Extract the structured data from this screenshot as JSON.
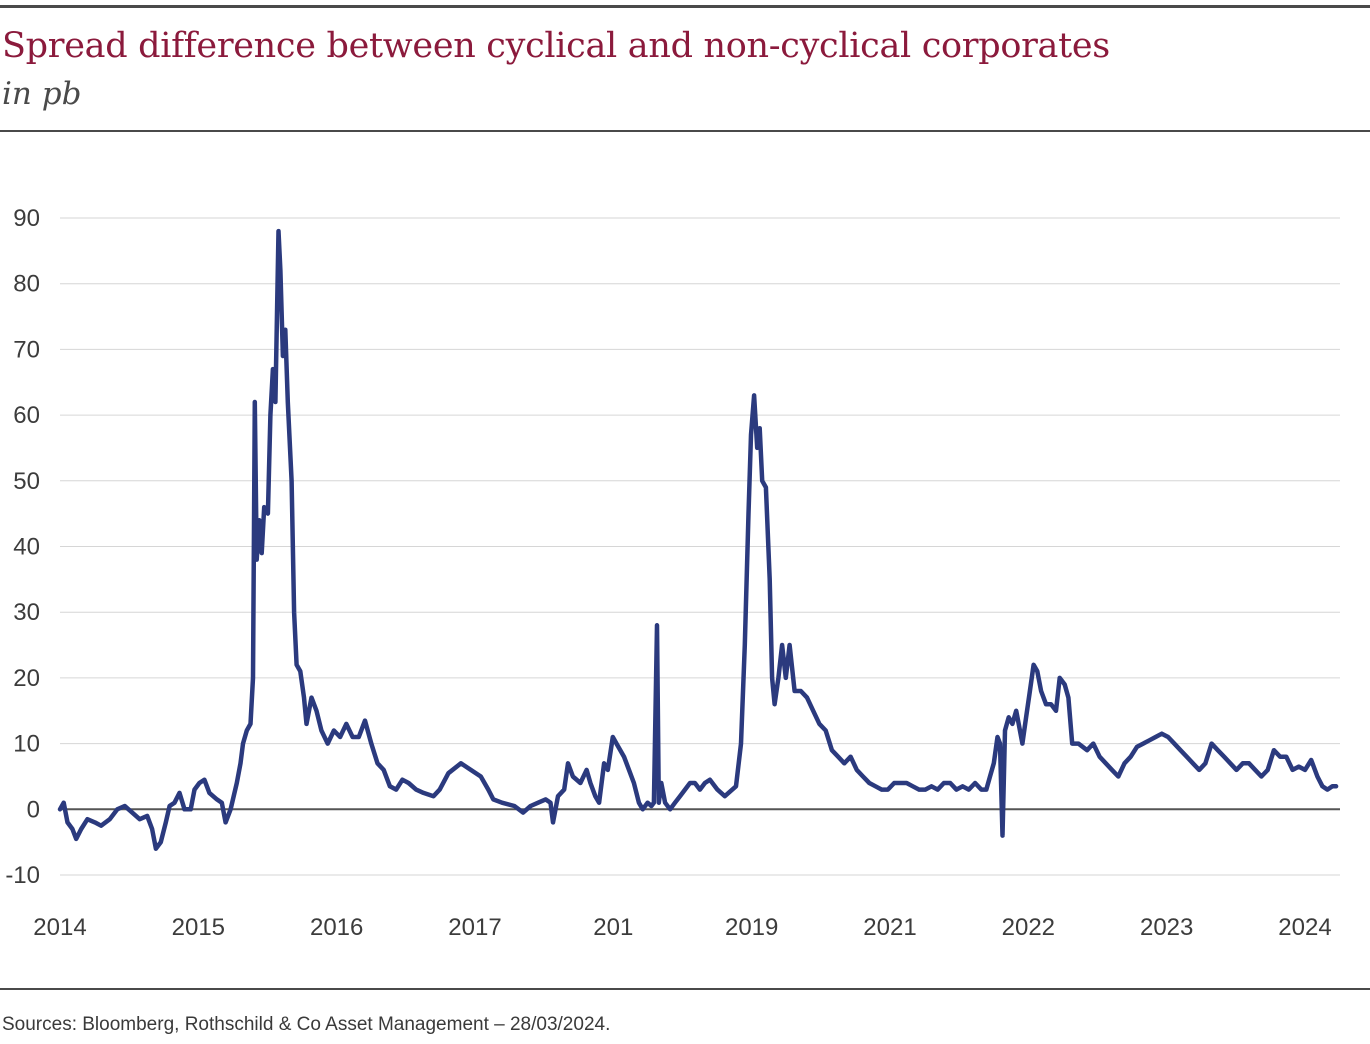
{
  "header": {
    "title": "Spread difference between cyclical and non-cyclical corporates",
    "subtitle": "in pb"
  },
  "footer": {
    "source": "Sources: Bloomberg, Rothschild & Co Asset Management – 28/03/2024."
  },
  "colors": {
    "line": "#2b3a7e",
    "title": "#8b1a3c",
    "grid": "#d6d6d6",
    "zero_line": "#555555"
  },
  "chart_data": {
    "type": "line",
    "title": "Spread difference between cyclical and non-cyclical corporates",
    "subtitle": "in pb",
    "xlabel": "",
    "ylabel": "",
    "ylim": [
      -10,
      90
    ],
    "xlim": [
      2014.0,
      2024.25
    ],
    "grid": true,
    "y_ticks": [
      "-10",
      "0",
      "10",
      "20",
      "30",
      "40",
      "50",
      "60",
      "70",
      "80",
      "90"
    ],
    "x_tick_labels": [
      "2014",
      "2015",
      "2016",
      "2017",
      "201",
      "2019",
      "2021",
      "2022",
      "2023",
      "2024"
    ],
    "series": [
      {
        "name": "",
        "points": [
          [
            2014.0,
            0
          ],
          [
            2014.03,
            1
          ],
          [
            2014.06,
            -2
          ],
          [
            2014.1,
            -3
          ],
          [
            2014.13,
            -4.5
          ],
          [
            2014.17,
            -3
          ],
          [
            2014.22,
            -1.5
          ],
          [
            2014.28,
            -2
          ],
          [
            2014.33,
            -2.5
          ],
          [
            2014.4,
            -1.5
          ],
          [
            2014.46,
            0
          ],
          [
            2014.52,
            0.5
          ],
          [
            2014.58,
            -0.5
          ],
          [
            2014.64,
            -1.5
          ],
          [
            2014.7,
            -1
          ],
          [
            2014.74,
            -3
          ],
          [
            2014.77,
            -6
          ],
          [
            2014.81,
            -5
          ],
          [
            2014.85,
            -2
          ],
          [
            2014.88,
            0.5
          ],
          [
            2014.92,
            1
          ],
          [
            2014.96,
            2.5
          ],
          [
            2015.0,
            0
          ],
          [
            2015.05,
            0
          ],
          [
            2015.08,
            3
          ],
          [
            2015.12,
            4
          ],
          [
            2015.16,
            4.5
          ],
          [
            2015.2,
            2.5
          ],
          [
            2015.26,
            1.5
          ],
          [
            2015.3,
            1
          ],
          [
            2015.33,
            -2
          ],
          [
            2015.37,
            0
          ],
          [
            2015.42,
            4
          ],
          [
            2015.45,
            7
          ],
          [
            2015.47,
            10
          ],
          [
            2015.5,
            12
          ],
          [
            2015.53,
            13
          ],
          [
            2015.55,
            20
          ],
          [
            2015.565,
            62
          ],
          [
            2015.58,
            38
          ],
          [
            2015.6,
            44
          ],
          [
            2015.62,
            39
          ],
          [
            2015.64,
            46
          ],
          [
            2015.67,
            45
          ],
          [
            2015.69,
            60
          ],
          [
            2015.71,
            67
          ],
          [
            2015.73,
            62
          ],
          [
            2015.755,
            88
          ],
          [
            2015.77,
            82
          ],
          [
            2015.79,
            69
          ],
          [
            2015.81,
            73
          ],
          [
            2015.83,
            62
          ],
          [
            2015.86,
            50
          ],
          [
            2015.88,
            30
          ],
          [
            2015.9,
            22
          ],
          [
            2015.93,
            21
          ],
          [
            2015.96,
            17
          ],
          [
            2015.98,
            13
          ],
          [
            2016.02,
            17
          ],
          [
            2016.06,
            15
          ],
          [
            2016.1,
            12
          ],
          [
            2016.15,
            10
          ],
          [
            2016.2,
            12
          ],
          [
            2016.25,
            11
          ],
          [
            2016.3,
            13
          ],
          [
            2016.35,
            11
          ],
          [
            2016.4,
            11
          ],
          [
            2016.45,
            13.5
          ],
          [
            2016.5,
            10
          ],
          [
            2016.55,
            7
          ],
          [
            2016.6,
            6
          ],
          [
            2016.65,
            3.5
          ],
          [
            2016.7,
            3
          ],
          [
            2016.75,
            4.5
          ],
          [
            2016.8,
            4
          ],
          [
            2016.86,
            3
          ],
          [
            2016.92,
            2.5
          ],
          [
            2017.0,
            2
          ],
          [
            2017.05,
            3
          ],
          [
            2017.12,
            5.5
          ],
          [
            2017.22,
            7
          ],
          [
            2017.3,
            6
          ],
          [
            2017.38,
            5
          ],
          [
            2017.44,
            3
          ],
          [
            2017.48,
            1.5
          ],
          [
            2017.55,
            1
          ],
          [
            2017.65,
            0.5
          ],
          [
            2017.72,
            -0.5
          ],
          [
            2017.78,
            0.5
          ],
          [
            2017.84,
            1
          ],
          [
            2017.9,
            1.5
          ],
          [
            2017.94,
            1
          ],
          [
            2017.96,
            -2
          ],
          [
            2018.0,
            2
          ],
          [
            2018.05,
            3
          ],
          [
            2018.08,
            7
          ],
          [
            2018.12,
            5
          ],
          [
            2018.18,
            4
          ],
          [
            2018.23,
            6
          ],
          [
            2018.26,
            4
          ],
          [
            2018.3,
            2
          ],
          [
            2018.33,
            1
          ],
          [
            2018.37,
            7
          ],
          [
            2018.4,
            6
          ],
          [
            2018.44,
            11
          ],
          [
            2018.47,
            10
          ],
          [
            2018.5,
            9
          ],
          [
            2018.53,
            8
          ],
          [
            2018.57,
            6
          ],
          [
            2018.61,
            4
          ],
          [
            2018.65,
            1
          ],
          [
            2018.68,
            0
          ],
          [
            2018.72,
            1
          ],
          [
            2018.75,
            0.5
          ],
          [
            2018.77,
            1
          ],
          [
            2018.795,
            28
          ],
          [
            2018.81,
            1
          ],
          [
            2018.83,
            4
          ],
          [
            2018.86,
            1
          ],
          [
            2018.9,
            0
          ],
          [
            2018.94,
            1
          ],
          [
            2018.98,
            2
          ],
          [
            2019.02,
            3
          ],
          [
            2019.06,
            4
          ],
          [
            2019.1,
            4
          ],
          [
            2019.14,
            3
          ],
          [
            2019.18,
            4
          ],
          [
            2019.22,
            4.5
          ],
          [
            2019.28,
            3
          ],
          [
            2019.34,
            2
          ],
          [
            2019.4,
            3
          ],
          [
            2019.43,
            3.5
          ],
          [
            2019.47,
            10
          ],
          [
            2019.5,
            25
          ],
          [
            2019.53,
            45
          ],
          [
            2019.55,
            57
          ],
          [
            2019.575,
            63
          ],
          [
            2019.6,
            55
          ],
          [
            2019.62,
            58
          ],
          [
            2019.64,
            50
          ],
          [
            2019.67,
            49
          ],
          [
            2019.7,
            35
          ],
          [
            2019.72,
            20
          ],
          [
            2019.74,
            16
          ],
          [
            2019.77,
            20
          ],
          [
            2019.8,
            25
          ],
          [
            2019.83,
            20
          ],
          [
            2019.86,
            25
          ],
          [
            2019.9,
            18
          ],
          [
            2019.95,
            18
          ],
          [
            2020.0,
            17
          ],
          [
            2020.05,
            15
          ],
          [
            2020.1,
            13
          ],
          [
            2020.15,
            12
          ],
          [
            2020.2,
            9
          ],
          [
            2020.25,
            8
          ],
          [
            2020.3,
            7
          ],
          [
            2020.35,
            8
          ],
          [
            2020.4,
            6
          ],
          [
            2020.45,
            5
          ],
          [
            2020.5,
            4
          ],
          [
            2020.55,
            3.5
          ],
          [
            2020.6,
            3
          ],
          [
            2020.65,
            3
          ],
          [
            2020.7,
            4
          ],
          [
            2020.75,
            4
          ],
          [
            2020.8,
            4
          ],
          [
            2020.85,
            3.5
          ],
          [
            2020.9,
            3
          ],
          [
            2020.95,
            3
          ],
          [
            2021.0,
            3.5
          ],
          [
            2021.05,
            3
          ],
          [
            2021.1,
            4
          ],
          [
            2021.15,
            4
          ],
          [
            2021.2,
            3
          ],
          [
            2021.25,
            3.5
          ],
          [
            2021.3,
            3
          ],
          [
            2021.35,
            4
          ],
          [
            2021.4,
            3
          ],
          [
            2021.44,
            3
          ],
          [
            2021.47,
            5
          ],
          [
            2021.5,
            7
          ],
          [
            2021.53,
            11
          ],
          [
            2021.55,
            10
          ],
          [
            2021.57,
            -4
          ],
          [
            2021.59,
            12
          ],
          [
            2021.62,
            14
          ],
          [
            2021.65,
            13
          ],
          [
            2021.68,
            15
          ],
          [
            2021.7,
            13
          ],
          [
            2021.73,
            10
          ],
          [
            2021.76,
            14
          ],
          [
            2021.79,
            18
          ],
          [
            2021.82,
            22
          ],
          [
            2021.85,
            21
          ],
          [
            2021.88,
            18
          ],
          [
            2021.92,
            16
          ],
          [
            2021.96,
            16
          ],
          [
            2022.0,
            15
          ],
          [
            2022.03,
            20
          ],
          [
            2022.07,
            19
          ],
          [
            2022.1,
            17
          ],
          [
            2022.13,
            10
          ],
          [
            2022.18,
            10
          ],
          [
            2022.25,
            9
          ],
          [
            2022.3,
            10
          ],
          [
            2022.35,
            8
          ],
          [
            2022.4,
            7
          ],
          [
            2022.45,
            6
          ],
          [
            2022.5,
            5
          ],
          [
            2022.55,
            7
          ],
          [
            2022.6,
            8
          ],
          [
            2022.65,
            9.5
          ],
          [
            2022.7,
            10
          ],
          [
            2022.75,
            10.5
          ],
          [
            2022.8,
            11
          ],
          [
            2022.85,
            11.5
          ],
          [
            2022.9,
            11
          ],
          [
            2022.95,
            10
          ],
          [
            2023.0,
            9
          ],
          [
            2023.05,
            8
          ],
          [
            2023.1,
            7
          ],
          [
            2023.15,
            6
          ],
          [
            2023.2,
            7
          ],
          [
            2023.25,
            10
          ],
          [
            2023.3,
            9
          ],
          [
            2023.35,
            8
          ],
          [
            2023.4,
            7
          ],
          [
            2023.45,
            6
          ],
          [
            2023.5,
            7
          ],
          [
            2023.55,
            7
          ],
          [
            2023.6,
            6
          ],
          [
            2023.65,
            5
          ],
          [
            2023.7,
            6
          ],
          [
            2023.75,
            9
          ],
          [
            2023.8,
            8
          ],
          [
            2023.85,
            8
          ],
          [
            2023.9,
            6
          ],
          [
            2023.95,
            6.5
          ],
          [
            2024.0,
            6
          ],
          [
            2024.05,
            7.5
          ],
          [
            2024.1,
            5
          ],
          [
            2024.14,
            3.5
          ],
          [
            2024.18,
            3
          ],
          [
            2024.22,
            3.5
          ],
          [
            2024.25,
            3.5
          ]
        ]
      }
    ]
  }
}
